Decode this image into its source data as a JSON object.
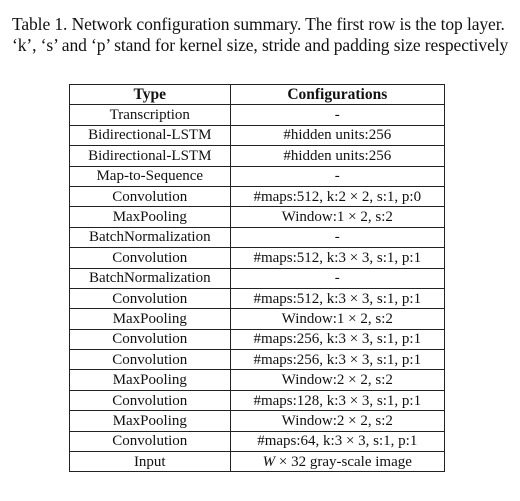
{
  "caption": "Table 1. Network configuration summary. The first row is the top layer. ‘k’, ‘s’ and ‘p’ stand for kernel size, stride and padding size respectively",
  "table": {
    "headers": [
      "Type",
      "Configurations"
    ],
    "rows": [
      {
        "type": "Transcription",
        "config": "-"
      },
      {
        "type": "Bidirectional-LSTM",
        "config": "#hidden units:256"
      },
      {
        "type": "Bidirectional-LSTM",
        "config": "#hidden units:256"
      },
      {
        "type": "Map-to-Sequence",
        "config": "-"
      },
      {
        "type": "Convolution",
        "config": "#maps:512, k:2 × 2, s:1, p:0"
      },
      {
        "type": "MaxPooling",
        "config": "Window:1 × 2, s:2"
      },
      {
        "type": "BatchNormalization",
        "config": "-"
      },
      {
        "type": "Convolution",
        "config": "#maps:512, k:3 × 3, s:1, p:1"
      },
      {
        "type": "BatchNormalization",
        "config": "-"
      },
      {
        "type": "Convolution",
        "config": "#maps:512, k:3 × 3, s:1, p:1"
      },
      {
        "type": "MaxPooling",
        "config": "Window:1 × 2, s:2"
      },
      {
        "type": "Convolution",
        "config": "#maps:256, k:3 × 3, s:1, p:1"
      },
      {
        "type": "Convolution",
        "config": "#maps:256, k:3 × 3, s:1, p:1"
      },
      {
        "type": "MaxPooling",
        "config": "Window:2 × 2, s:2"
      },
      {
        "type": "Convolution",
        "config": "#maps:128, k:3 × 3, s:1, p:1"
      },
      {
        "type": "MaxPooling",
        "config": "Window:2 × 2, s:2"
      },
      {
        "type": "Convolution",
        "config": "#maps:64, k:3 × 3, s:1, p:1"
      },
      {
        "type": "Input",
        "config": "W × 32 gray-scale image"
      }
    ]
  }
}
